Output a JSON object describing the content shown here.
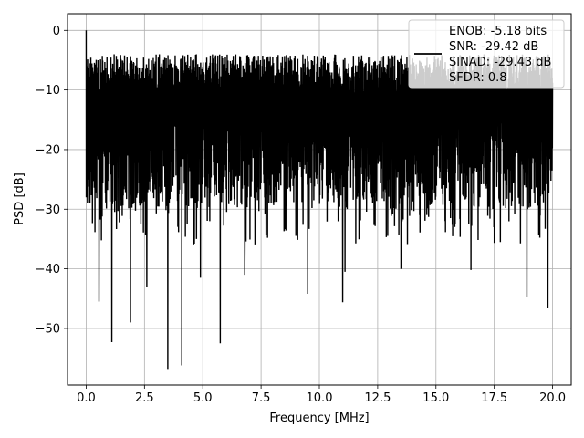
{
  "chart_data": {
    "type": "line",
    "xlabel": "Frequency [MHz]",
    "ylabel": "PSD [dB]",
    "xlim": [
      -0.8,
      20.8
    ],
    "ylim": [
      -59.5,
      2.8
    ],
    "xticks": [
      0.0,
      2.5,
      5.0,
      7.5,
      10.0,
      12.5,
      15.0,
      17.5,
      20.0
    ],
    "xtick_labels": [
      "0.0",
      "2.5",
      "5.0",
      "7.5",
      "10.0",
      "12.5",
      "15.0",
      "17.5",
      "20.0"
    ],
    "yticks": [
      0,
      -10,
      -20,
      -30,
      -40,
      -50
    ],
    "ytick_labels": [
      "0",
      "−10",
      "−20",
      "−30",
      "−40",
      "−50"
    ],
    "grid": true,
    "legend_position": "upper-right",
    "legend": [
      "ENOB: -5.18 bits",
      "SNR: -29.42 dB",
      "SINAD: -29.43 dB",
      "SFDR: 0.8"
    ],
    "series": [
      {
        "color": "#000000",
        "description": "dense noise-floor PSD spanning 0 to 20 MHz; upper envelope near -6 to -2 dB, lower envelope typically -25 to -35 dB",
        "peak": {
          "x": 0.0,
          "y": 0.0
        },
        "dips": [
          {
            "x": 0.55,
            "y": -45.5
          },
          {
            "x": 1.1,
            "y": -52.3
          },
          {
            "x": 1.9,
            "y": -49.0
          },
          {
            "x": 2.6,
            "y": -43.0
          },
          {
            "x": 3.5,
            "y": -56.8
          },
          {
            "x": 4.1,
            "y": -56.2
          },
          {
            "x": 4.9,
            "y": -41.5
          },
          {
            "x": 5.75,
            "y": -52.5
          },
          {
            "x": 6.8,
            "y": -41.0
          },
          {
            "x": 9.5,
            "y": -44.2
          },
          {
            "x": 11.0,
            "y": -45.6
          },
          {
            "x": 11.1,
            "y": -40.5
          },
          {
            "x": 13.5,
            "y": -40.0
          },
          {
            "x": 16.5,
            "y": -40.2
          },
          {
            "x": 18.9,
            "y": -44.8
          },
          {
            "x": 19.8,
            "y": -46.5
          }
        ]
      }
    ]
  }
}
